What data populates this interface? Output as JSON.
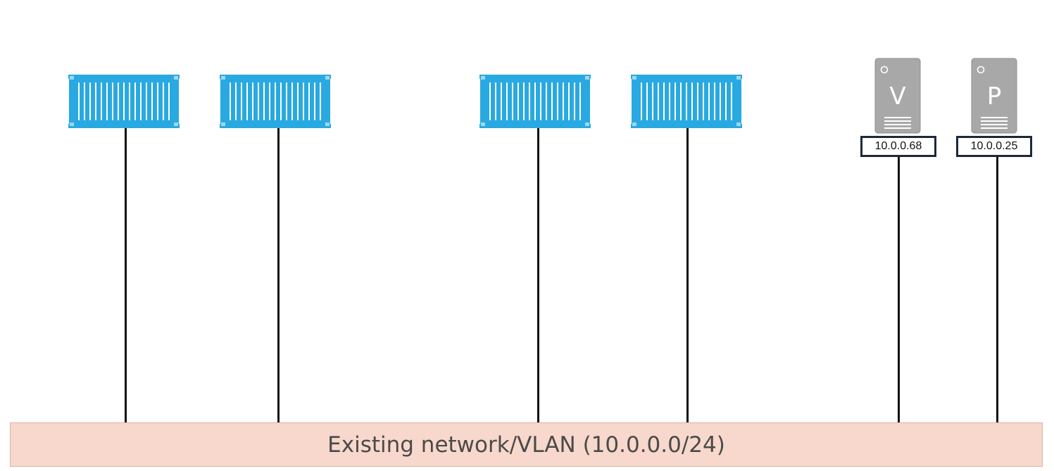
{
  "diagram": {
    "network": {
      "label": "Existing network/VLAN (10.0.0.0/24)"
    },
    "containers": [
      {
        "icon": "shipping-container-icon"
      },
      {
        "icon": "shipping-container-icon"
      },
      {
        "icon": "shipping-container-icon"
      },
      {
        "icon": "shipping-container-icon"
      }
    ],
    "servers": [
      {
        "letter": "V",
        "ip": "10.0.0.68",
        "icon": "server-icon"
      },
      {
        "letter": "P",
        "ip": "10.0.0.25",
        "icon": "server-icon"
      }
    ]
  },
  "colors": {
    "container_blue": "#29a9e1",
    "server_gray": "#a8a8a8",
    "network_fill": "#f8d8cc",
    "wire": "#111111"
  }
}
